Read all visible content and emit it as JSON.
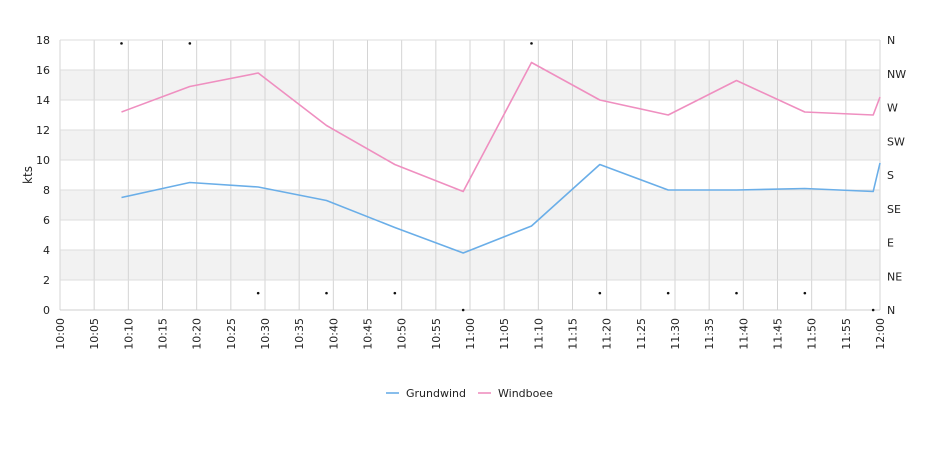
{
  "chart_data": {
    "type": "line",
    "ylabel": "kts",
    "ylim": [
      0,
      18
    ],
    "y_ticks": [
      "0",
      "2",
      "4",
      "6",
      "8",
      "10",
      "12",
      "14",
      "16",
      "18"
    ],
    "x_ticks": [
      "10:00",
      "10:05",
      "10:10",
      "10:15",
      "10:20",
      "10:25",
      "10:30",
      "10:35",
      "10:40",
      "10:45",
      "10:50",
      "10:55",
      "11:00",
      "11:05",
      "11:10",
      "11:15",
      "11:20",
      "11:25",
      "11:30",
      "11:35",
      "11:40",
      "11:45",
      "11:50",
      "11:55",
      "12:00"
    ],
    "direction_ticks": [
      "N",
      "NE",
      "E",
      "SE",
      "S",
      "SW",
      "W",
      "NW",
      "N"
    ],
    "series": [
      {
        "name": "Grundwind",
        "color": "#6aaee8",
        "x": [
          "10:09",
          "10:19",
          "10:29",
          "10:39",
          "10:49",
          "10:59",
          "11:09",
          "11:19",
          "11:29",
          "11:39",
          "11:49",
          "11:59",
          "12:00"
        ],
        "values": [
          7.5,
          8.5,
          8.2,
          7.3,
          5.5,
          3.8,
          5.6,
          9.7,
          8.0,
          8.0,
          8.1,
          7.9,
          9.8
        ]
      },
      {
        "name": "Windboee",
        "color": "#ef8fc0",
        "x": [
          "10:09",
          "10:19",
          "10:29",
          "10:39",
          "10:49",
          "10:59",
          "11:09",
          "11:19",
          "11:29",
          "11:39",
          "11:49",
          "11:59",
          "12:00"
        ],
        "values": [
          13.2,
          14.9,
          15.8,
          12.3,
          9.7,
          7.9,
          16.5,
          14.0,
          13.0,
          15.3,
          13.2,
          13.0,
          14.2
        ]
      }
    ],
    "direction_markers": {
      "x": [
        "10:09",
        "10:19",
        "10:29",
        "10:39",
        "10:49",
        "10:59",
        "11:09",
        "11:19",
        "11:29",
        "11:39",
        "11:49",
        "11:59"
      ],
      "direction_index": [
        7.9,
        7.9,
        0.5,
        0.5,
        0.5,
        0.0,
        7.9,
        0.5,
        0.5,
        0.5,
        0.5,
        0.0
      ]
    },
    "grid": true,
    "legend_position": "bottom-center"
  }
}
